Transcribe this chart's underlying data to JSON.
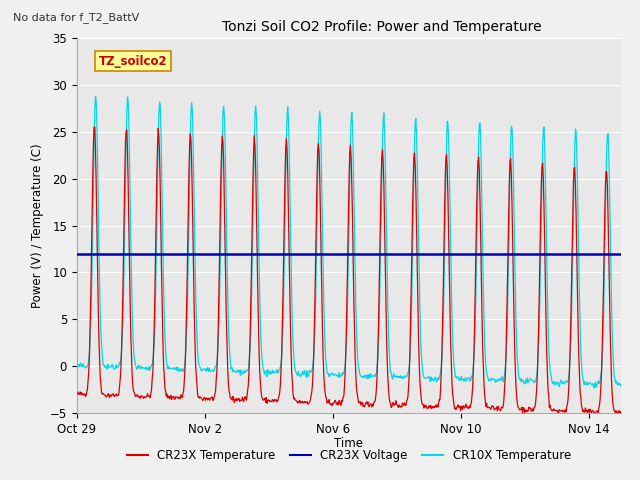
{
  "title": "Tonzi Soil CO2 Profile: Power and Temperature",
  "subtitle": "No data for f_T2_BattV",
  "xlabel": "Time",
  "ylabel": "Power (V) / Temperature (C)",
  "ylim": [
    -5,
    35
  ],
  "yticks": [
    -5,
    0,
    5,
    10,
    15,
    20,
    25,
    30,
    35
  ],
  "xtick_labels": [
    "Oct 29",
    "Nov 2",
    "Nov 6",
    "Nov 10",
    "Nov 14"
  ],
  "xtick_positions": [
    0,
    4,
    8,
    12,
    16
  ],
  "legend_entries": [
    "CR23X Temperature",
    "CR23X Voltage",
    "CR10X Temperature"
  ],
  "legend_colors": [
    "#ff0000",
    "#0000cc",
    "#00ccff"
  ],
  "voltage_level": 12.0,
  "fig_bg_color": "#f0f0f0",
  "plot_bg_color": "#e8e8e8",
  "annotation_text": "TZ_soilco2",
  "annotation_bg": "#ffff99",
  "annotation_border": "#cc8800",
  "n_days": 17,
  "pts_per_day": 48
}
